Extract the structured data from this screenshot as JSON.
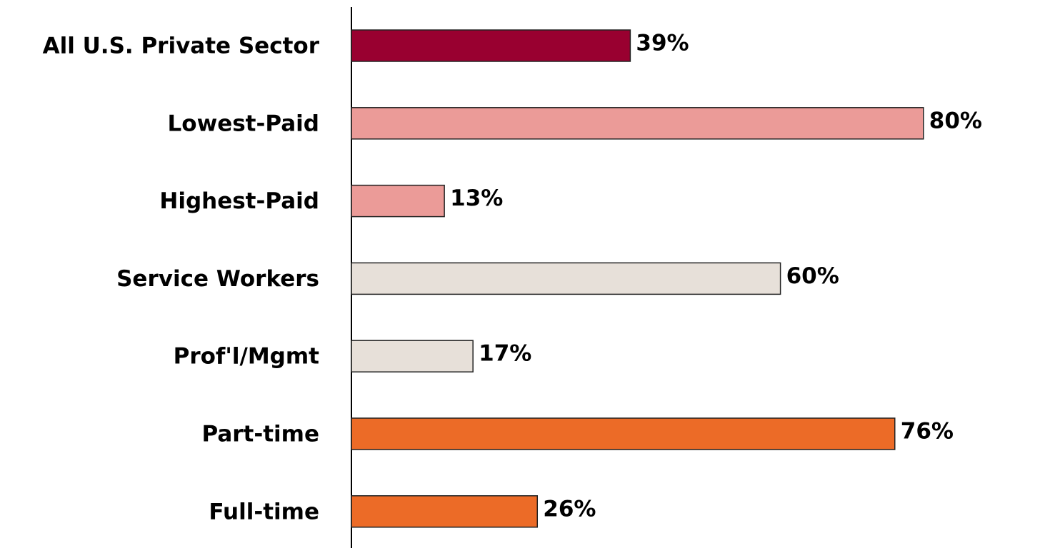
{
  "chart_data": {
    "type": "hbar",
    "categories": [
      "All U.S. Private Sector",
      "Lowest-Paid",
      "Highest-Paid",
      "Service Workers",
      "Prof'l/Mgmt",
      "Part-time",
      "Full-time"
    ],
    "values": [
      39,
      80,
      13,
      60,
      17,
      76,
      26
    ],
    "value_labels": [
      "39%",
      "80%",
      "13%",
      "60%",
      "17%",
      "76%",
      "26%"
    ],
    "colors": [
      "#990030",
      "#eb9b98",
      "#eb9b98",
      "#e7e0d9",
      "#e7e0d9",
      "#ec6b27",
      "#ec6b27"
    ]
  }
}
